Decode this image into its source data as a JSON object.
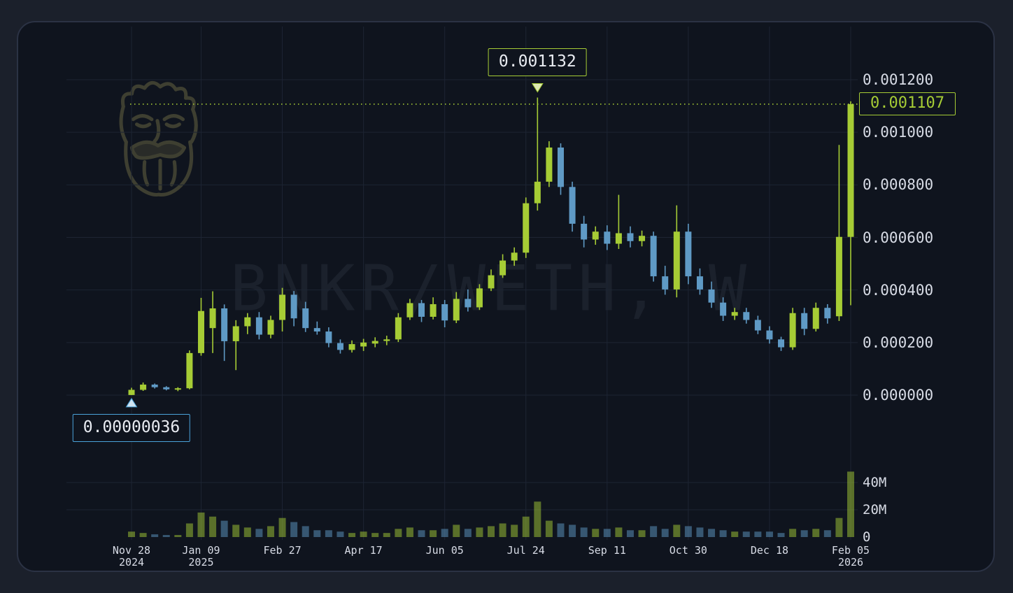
{
  "theme": {
    "outer_bg": "#1b202b",
    "panel_bg": "#0f141e",
    "panel_border": "#2b3244",
    "grid": "#1d2433",
    "text": "#d8dce6",
    "up": "#a6cc35",
    "down": "#5f9ac5",
    "low_marker_accent": "#4aa3da",
    "high_triangle_fill": "#dde8b4",
    "low_triangle_fill": "#cfe3f2",
    "last_price_color": "#a6cc35"
  },
  "watermark": {
    "text": "BNKR/WETH, W"
  },
  "markers": {
    "high": {
      "label": "0.001132",
      "value": 1132,
      "index": 35
    },
    "low": {
      "label": "0.00000036",
      "value": 0.36,
      "index": 0
    },
    "last": {
      "label": "0.001107",
      "value": 1107
    }
  },
  "price_axis": {
    "ticks": [
      {
        "text": "0.001200",
        "value": 1200
      },
      {
        "text": "0.001000",
        "value": 1000
      },
      {
        "text": "0.000800",
        "value": 800
      },
      {
        "text": "0.000600",
        "value": 600
      },
      {
        "text": "0.000400",
        "value": 400
      },
      {
        "text": "0.000200",
        "value": 200
      },
      {
        "text": "0.000000",
        "value": 0
      }
    ]
  },
  "volume_axis": {
    "ticks": [
      {
        "text": "40M",
        "value": 40
      },
      {
        "text": "20M",
        "value": 20
      },
      {
        "text": "0",
        "value": 0
      }
    ]
  },
  "x_axis": {
    "ticks": [
      {
        "label": "Nov 28",
        "year": "2024",
        "index": 0
      },
      {
        "label": "Jan 09",
        "year": "2025",
        "index": 6
      },
      {
        "label": "Feb 27",
        "index": 13
      },
      {
        "label": "Apr 17",
        "index": 20
      },
      {
        "label": "Jun 05",
        "index": 27
      },
      {
        "label": "Jul 24",
        "index": 34
      },
      {
        "label": "Sep 11",
        "index": 41
      },
      {
        "label": "Oct 30",
        "index": 48
      },
      {
        "label": "Dec 18",
        "index": 55
      },
      {
        "label": "Feb 05",
        "year": "2026",
        "index": 62
      }
    ]
  },
  "chart_data": {
    "type": "candlestick",
    "title": "BNKR/WETH, W",
    "interval": "weekly",
    "price_scale": 1e-06,
    "volume_scale": 1000000.0,
    "ylim_price": [
      0,
      1200
    ],
    "ylim_volume": [
      0,
      50
    ],
    "high_marker": 1132,
    "low_marker": 0.36,
    "last_close": 1107,
    "columns": [
      "date",
      "open",
      "high",
      "low",
      "close",
      "volume_millions"
    ],
    "candles": [
      [
        "2024-11-28",
        0.4,
        28,
        0.36,
        20,
        4
      ],
      [
        "2024-12-05",
        20,
        48,
        16,
        40,
        3
      ],
      [
        "2024-12-12",
        40,
        44,
        25,
        30,
        2
      ],
      [
        "2024-12-19",
        30,
        34,
        18,
        22,
        1.5
      ],
      [
        "2024-12-26",
        22,
        30,
        15,
        26,
        1.5
      ],
      [
        "2025-01-02",
        26,
        170,
        22,
        160,
        10
      ],
      [
        "2025-01-09",
        160,
        370,
        150,
        320,
        18
      ],
      [
        "2025-01-16",
        255,
        395,
        160,
        330,
        15
      ],
      [
        "2025-01-23",
        330,
        345,
        130,
        205,
        12
      ],
      [
        "2025-01-30",
        205,
        285,
        95,
        262,
        9
      ],
      [
        "2025-02-06",
        262,
        312,
        232,
        296,
        7
      ],
      [
        "2025-02-13",
        296,
        316,
        212,
        230,
        6
      ],
      [
        "2025-02-20",
        230,
        302,
        216,
        286,
        8
      ],
      [
        "2025-02-27",
        286,
        408,
        242,
        382,
        14
      ],
      [
        "2025-03-06",
        382,
        396,
        262,
        292,
        11
      ],
      [
        "2025-03-13",
        330,
        355,
        240,
        255,
        8
      ],
      [
        "2025-03-20",
        255,
        280,
        230,
        242,
        5
      ],
      [
        "2025-03-27",
        242,
        258,
        182,
        198,
        5
      ],
      [
        "2025-04-03",
        198,
        212,
        158,
        172,
        4
      ],
      [
        "2025-04-10",
        172,
        208,
        162,
        194,
        3
      ],
      [
        "2025-04-17",
        185,
        214,
        168,
        200,
        4
      ],
      [
        "2025-04-24",
        196,
        220,
        182,
        206,
        3
      ],
      [
        "2025-05-01",
        206,
        226,
        190,
        212,
        3
      ],
      [
        "2025-05-08",
        212,
        312,
        202,
        296,
        6
      ],
      [
        "2025-05-15",
        296,
        366,
        286,
        350,
        7
      ],
      [
        "2025-05-22",
        350,
        362,
        278,
        298,
        5
      ],
      [
        "2025-05-29",
        298,
        372,
        288,
        346,
        5
      ],
      [
        "2025-06-05",
        346,
        362,
        258,
        284,
        6
      ],
      [
        "2025-06-12",
        284,
        392,
        274,
        366,
        9
      ],
      [
        "2025-06-19",
        366,
        402,
        318,
        334,
        6
      ],
      [
        "2025-06-26",
        334,
        422,
        324,
        406,
        7
      ],
      [
        "2025-07-03",
        406,
        478,
        396,
        456,
        8
      ],
      [
        "2025-07-10",
        456,
        536,
        446,
        512,
        10
      ],
      [
        "2025-07-17",
        512,
        562,
        492,
        542,
        9
      ],
      [
        "2025-07-24",
        542,
        752,
        522,
        730,
        15
      ],
      [
        "2025-07-31",
        730,
        1132,
        702,
        812,
        26
      ],
      [
        "2025-08-07",
        812,
        966,
        792,
        942,
        12
      ],
      [
        "2025-08-14",
        942,
        958,
        762,
        792,
        10
      ],
      [
        "2025-08-21",
        792,
        812,
        622,
        652,
        9
      ],
      [
        "2025-08-28",
        652,
        682,
        562,
        592,
        7
      ],
      [
        "2025-09-04",
        592,
        642,
        572,
        622,
        6
      ],
      [
        "2025-09-11",
        622,
        646,
        552,
        576,
        6
      ],
      [
        "2025-09-18",
        576,
        762,
        556,
        616,
        7
      ],
      [
        "2025-09-25",
        616,
        642,
        562,
        586,
        5
      ],
      [
        "2025-10-02",
        586,
        626,
        566,
        606,
        5
      ],
      [
        "2025-10-09",
        606,
        622,
        432,
        452,
        8
      ],
      [
        "2025-10-16",
        452,
        492,
        382,
        402,
        6
      ],
      [
        "2025-10-23",
        402,
        722,
        372,
        622,
        9
      ],
      [
        "2025-10-30",
        622,
        652,
        422,
        452,
        8
      ],
      [
        "2025-11-06",
        452,
        482,
        382,
        402,
        7
      ],
      [
        "2025-11-13",
        402,
        432,
        332,
        352,
        6
      ],
      [
        "2025-11-20",
        352,
        372,
        282,
        302,
        5
      ],
      [
        "2025-11-27",
        302,
        332,
        286,
        316,
        4
      ],
      [
        "2025-12-04",
        316,
        332,
        272,
        286,
        4
      ],
      [
        "2025-12-11",
        286,
        302,
        232,
        246,
        4
      ],
      [
        "2025-12-18",
        246,
        262,
        196,
        212,
        4
      ],
      [
        "2025-12-25",
        212,
        222,
        168,
        182,
        3
      ],
      [
        "2026-01-01",
        182,
        332,
        172,
        312,
        6
      ],
      [
        "2026-01-08",
        312,
        332,
        228,
        252,
        5
      ],
      [
        "2026-01-15",
        252,
        352,
        242,
        332,
        6
      ],
      [
        "2026-01-22",
        332,
        346,
        272,
        292,
        5
      ],
      [
        "2026-01-29",
        300,
        952,
        282,
        602,
        14
      ],
      [
        "2026-02-05",
        602,
        1118,
        342,
        1107,
        48
      ]
    ]
  }
}
